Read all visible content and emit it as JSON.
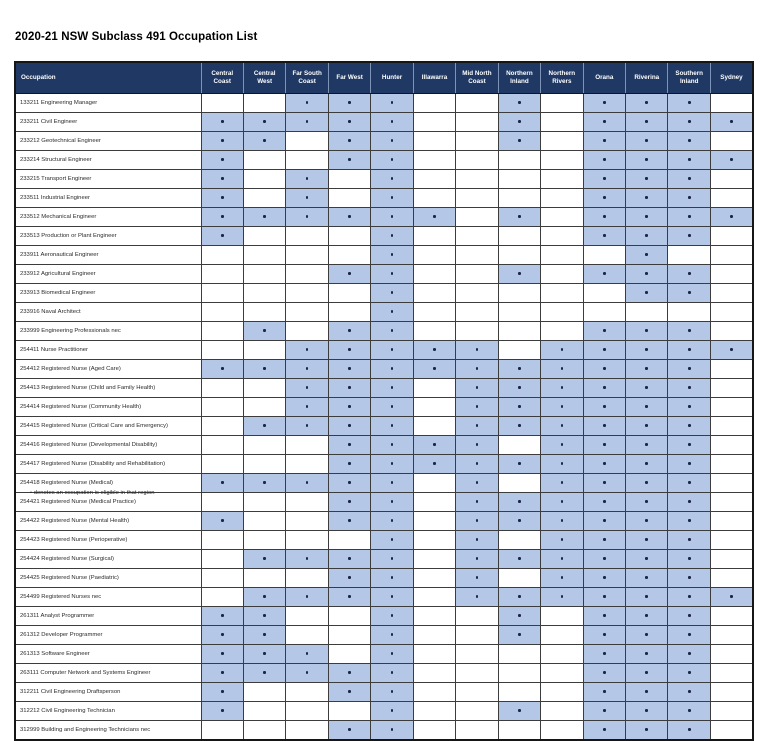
{
  "title": "2020-21 NSW Subclass 491 Occupation List",
  "footnote": "• denotes an occupation is eligible in that region",
  "colors": {
    "header_bg": "#1f3864",
    "header_text": "#ffffff",
    "eligible_cell_bg": "#b4c7e7",
    "dot": "#1a2744",
    "grid": "#3c3c3c"
  },
  "table": {
    "occupation_header": "Occupation",
    "eligible_marker": "•",
    "region_columns": [
      "Central Coast",
      "Central West",
      "Far South Coast",
      "Far West",
      "Hunter",
      "Illawarra",
      "Mid North Coast",
      "Northern Inland",
      "Northern Rivers",
      "Orana",
      "Riverina",
      "Southern Inland",
      "Sydney"
    ],
    "rows": [
      {
        "occupation": "133211 Engineering Manager",
        "eligibility": [
          0,
          0,
          1,
          1,
          1,
          0,
          0,
          1,
          0,
          1,
          1,
          1,
          0
        ]
      },
      {
        "occupation": "233211 Civil Engineer",
        "eligibility": [
          1,
          1,
          1,
          1,
          1,
          0,
          0,
          1,
          0,
          1,
          1,
          1,
          1
        ]
      },
      {
        "occupation": "233212 Geotechnical Engineer",
        "eligibility": [
          1,
          1,
          0,
          1,
          1,
          0,
          0,
          1,
          0,
          1,
          1,
          1,
          0
        ]
      },
      {
        "occupation": "233214 Structural Engineer",
        "eligibility": [
          1,
          0,
          0,
          1,
          1,
          0,
          0,
          0,
          0,
          1,
          1,
          1,
          1
        ]
      },
      {
        "occupation": "233215 Transport Engineer",
        "eligibility": [
          1,
          0,
          1,
          0,
          1,
          0,
          0,
          0,
          0,
          1,
          1,
          1,
          0
        ]
      },
      {
        "occupation": "233511 Industrial Engineer",
        "eligibility": [
          1,
          0,
          1,
          0,
          1,
          0,
          0,
          0,
          0,
          1,
          1,
          1,
          0
        ]
      },
      {
        "occupation": "233512 Mechanical Engineer",
        "eligibility": [
          1,
          1,
          1,
          1,
          1,
          1,
          0,
          1,
          0,
          1,
          1,
          1,
          1
        ]
      },
      {
        "occupation": "233513 Production or Plant Engineer",
        "eligibility": [
          1,
          0,
          0,
          0,
          1,
          0,
          0,
          0,
          0,
          1,
          1,
          1,
          0
        ]
      },
      {
        "occupation": "233911 Aeronautical Engineer",
        "eligibility": [
          0,
          0,
          0,
          0,
          1,
          0,
          0,
          0,
          0,
          0,
          1,
          0,
          0
        ]
      },
      {
        "occupation": "233912 Agricultural Engineer",
        "eligibility": [
          0,
          0,
          0,
          1,
          1,
          0,
          0,
          1,
          0,
          1,
          1,
          1,
          0
        ]
      },
      {
        "occupation": "233913 Biomedical Engineer",
        "eligibility": [
          0,
          0,
          0,
          0,
          1,
          0,
          0,
          0,
          0,
          0,
          1,
          1,
          0
        ]
      },
      {
        "occupation": "233916 Naval Architect",
        "eligibility": [
          0,
          0,
          0,
          0,
          1,
          0,
          0,
          0,
          0,
          0,
          0,
          0,
          0
        ]
      },
      {
        "occupation": "233999 Engineering Professionals nec",
        "eligibility": [
          0,
          1,
          0,
          1,
          1,
          0,
          0,
          0,
          0,
          1,
          1,
          1,
          0
        ]
      },
      {
        "occupation": "254411 Nurse Practitioner",
        "eligibility": [
          0,
          0,
          1,
          1,
          1,
          1,
          1,
          0,
          1,
          1,
          1,
          1,
          1
        ]
      },
      {
        "occupation": "254412 Registered Nurse (Aged Care)",
        "eligibility": [
          1,
          1,
          1,
          1,
          1,
          1,
          1,
          1,
          1,
          1,
          1,
          1,
          0
        ]
      },
      {
        "occupation": "254413 Registered Nurse (Child and Family Health)",
        "eligibility": [
          0,
          0,
          1,
          1,
          1,
          0,
          1,
          1,
          1,
          1,
          1,
          1,
          0
        ]
      },
      {
        "occupation": "254414 Registered Nurse (Community Health)",
        "eligibility": [
          0,
          0,
          1,
          1,
          1,
          0,
          1,
          1,
          1,
          1,
          1,
          1,
          0
        ]
      },
      {
        "occupation": "254415 Registered Nurse (Critical Care and Emergency)",
        "eligibility": [
          0,
          1,
          1,
          1,
          1,
          0,
          1,
          1,
          1,
          1,
          1,
          1,
          0
        ]
      },
      {
        "occupation": "254416 Registered Nurse (Developmental Disability)",
        "eligibility": [
          0,
          0,
          0,
          1,
          1,
          1,
          1,
          0,
          1,
          1,
          1,
          1,
          0
        ]
      },
      {
        "occupation": "254417 Registered Nurse (Disability and Rehabilitation)",
        "eligibility": [
          0,
          0,
          0,
          1,
          1,
          1,
          1,
          1,
          1,
          1,
          1,
          1,
          0
        ]
      },
      {
        "occupation": "254418 Registered Nurse (Medical)",
        "eligibility": [
          1,
          1,
          1,
          1,
          1,
          0,
          1,
          0,
          1,
          1,
          1,
          1,
          0
        ]
      },
      {
        "occupation": "254421 Registered Nurse (Medical Practice)",
        "eligibility": [
          0,
          0,
          0,
          1,
          1,
          0,
          1,
          1,
          1,
          1,
          1,
          1,
          0
        ]
      },
      {
        "occupation": "254422 Registered Nurse (Mental Health)",
        "eligibility": [
          1,
          0,
          0,
          1,
          1,
          0,
          1,
          1,
          1,
          1,
          1,
          1,
          0
        ]
      },
      {
        "occupation": "254423 Registered Nurse (Perioperative)",
        "eligibility": [
          0,
          0,
          0,
          0,
          1,
          0,
          1,
          0,
          1,
          1,
          1,
          1,
          0
        ]
      },
      {
        "occupation": "254424 Registered Nurse (Surgical)",
        "eligibility": [
          0,
          1,
          1,
          1,
          1,
          0,
          1,
          1,
          1,
          1,
          1,
          1,
          0
        ]
      },
      {
        "occupation": "254425 Registered Nurse (Paediatric)",
        "eligibility": [
          0,
          0,
          0,
          1,
          1,
          0,
          1,
          0,
          1,
          1,
          1,
          1,
          0
        ]
      },
      {
        "occupation": "254499 Registered Nurses nec",
        "eligibility": [
          0,
          1,
          1,
          1,
          1,
          0,
          1,
          1,
          1,
          1,
          1,
          1,
          1
        ]
      },
      {
        "occupation": "261311 Analyst Programmer",
        "eligibility": [
          1,
          1,
          0,
          0,
          1,
          0,
          0,
          1,
          0,
          1,
          1,
          1,
          0
        ]
      },
      {
        "occupation": "261312 Developer Programmer",
        "eligibility": [
          1,
          1,
          0,
          0,
          1,
          0,
          0,
          1,
          0,
          1,
          1,
          1,
          0
        ]
      },
      {
        "occupation": "261313 Software Engineer",
        "eligibility": [
          1,
          1,
          1,
          0,
          1,
          0,
          0,
          0,
          0,
          1,
          1,
          1,
          0
        ]
      },
      {
        "occupation": "263111 Computer Network and Systems Engineer",
        "eligibility": [
          1,
          1,
          1,
          1,
          1,
          0,
          0,
          0,
          0,
          1,
          1,
          1,
          0
        ]
      },
      {
        "occupation": "312211 Civil Engineering Draftsperson",
        "eligibility": [
          1,
          0,
          0,
          1,
          1,
          0,
          0,
          0,
          0,
          1,
          1,
          1,
          0
        ]
      },
      {
        "occupation": "312212 Civil Engineering Technician",
        "eligibility": [
          1,
          0,
          0,
          0,
          1,
          0,
          0,
          1,
          0,
          1,
          1,
          1,
          0
        ]
      },
      {
        "occupation": "312999 Building and Engineering Technicians nec",
        "eligibility": [
          0,
          0,
          0,
          1,
          1,
          0,
          0,
          0,
          0,
          1,
          1,
          1,
          0
        ]
      }
    ]
  }
}
